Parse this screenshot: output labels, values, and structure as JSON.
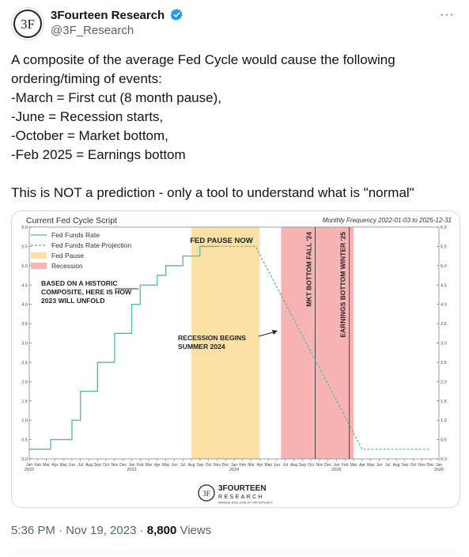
{
  "author": {
    "name": "3Fourteen Research",
    "handle": "@3F_Research",
    "avatar_label": "3F",
    "verified": true
  },
  "menu_icon": "more-dots-icon",
  "tweet": {
    "lines": [
      "A composite of the average Fed Cycle would cause the following",
      "ordering/timing of events:",
      "-March = First cut (8 month pause),",
      "-June = Recession starts,",
      "-October = Market bottom,",
      "-Feb 2025 = Earnings bottom",
      "",
      "This is NOT a prediction - only a tool to understand what is \"normal\""
    ]
  },
  "chart_data": {
    "type": "line",
    "title": "Current Fed Cycle Script",
    "subtitle": "Monthly Frequency 2022-01-03 to 2025-12-31",
    "ylim": [
      0,
      6
    ],
    "yticks": [
      "0.0",
      "0.5",
      "1.0",
      "1.5",
      "2.0",
      "2.5",
      "3.0",
      "3.5",
      "4.0",
      "4.5",
      "5.0",
      "5.5",
      "6.0"
    ],
    "x_month_labels": [
      "Jan",
      "Feb",
      "Mar",
      "Apr",
      "May",
      "Jun",
      "Jul",
      "Aug",
      "Sep",
      "Oct",
      "Nov",
      "Dec"
    ],
    "year_labels": [
      "2022",
      "2023",
      "2024",
      "2025",
      "2026"
    ],
    "legend": [
      {
        "label": "Fed Funds Rate",
        "style": "solid",
        "color": "#4fb8a8"
      },
      {
        "label": "Fed Funds Rate Projection",
        "style": "dashed",
        "color": "#4fb8a8"
      },
      {
        "label": "Fed Pause",
        "style": "patch",
        "color": "#fbe0a6"
      },
      {
        "label": "Recession",
        "style": "patch",
        "color": "#f8b4b4"
      }
    ],
    "series": [
      {
        "name": "Fed Funds Rate",
        "x": [
          0,
          2,
          2.5,
          4,
          5,
          6,
          7,
          8,
          9,
          10,
          11,
          12,
          13,
          14,
          15,
          16,
          17,
          18,
          19,
          20,
          21,
          22
        ],
        "values": [
          0.25,
          0.25,
          0.5,
          0.5,
          1.0,
          1.75,
          1.75,
          2.5,
          2.5,
          3.25,
          3.25,
          4.0,
          4.5,
          4.5,
          4.75,
          5.0,
          5.0,
          5.25,
          5.25,
          5.5,
          5.5,
          5.5
        ]
      },
      {
        "name": "Fed Funds Rate Projection",
        "x": [
          22,
          26.5,
          39,
          40,
          47
        ],
        "values": [
          5.5,
          5.5,
          0.25,
          0.25,
          0.25
        ]
      }
    ],
    "shaded_regions": [
      {
        "name": "Fed Pause",
        "x_start": 19,
        "x_end": 27,
        "color": "#fbe0a6"
      },
      {
        "name": "Recession",
        "x_start": 29.5,
        "x_end": 38,
        "color": "#f8b4b4"
      }
    ],
    "vertical_lines": [
      {
        "x": 33.5,
        "label": "MKT BOTTOM FALL '24"
      },
      {
        "x": 37.5,
        "label": "EARNINGS BOTTOM WINTER '25"
      }
    ],
    "annotations": [
      {
        "text": "FED PAUSE NOW"
      },
      {
        "text": "BASED ON A HISTORIC COMPOSITE, HERE IS HOW 2023 WILL UNFOLD"
      },
      {
        "text": "RECESSION BEGINS SUMMER 2024"
      }
    ],
    "logo": {
      "name": "3FOURTEEN",
      "sub": "RESEARCH",
      "tagline": "MANAGE RISK. EXPLOIT OPPORTUNITY"
    },
    "grid": false
  },
  "meta": {
    "time": "5:36 PM · Nov 19, 2023 · ",
    "views": "8,800",
    "views_label": " Views"
  },
  "colors": {
    "accent": "#1d9bf0",
    "text_secondary": "#536471",
    "line": "#4fb8a8"
  }
}
